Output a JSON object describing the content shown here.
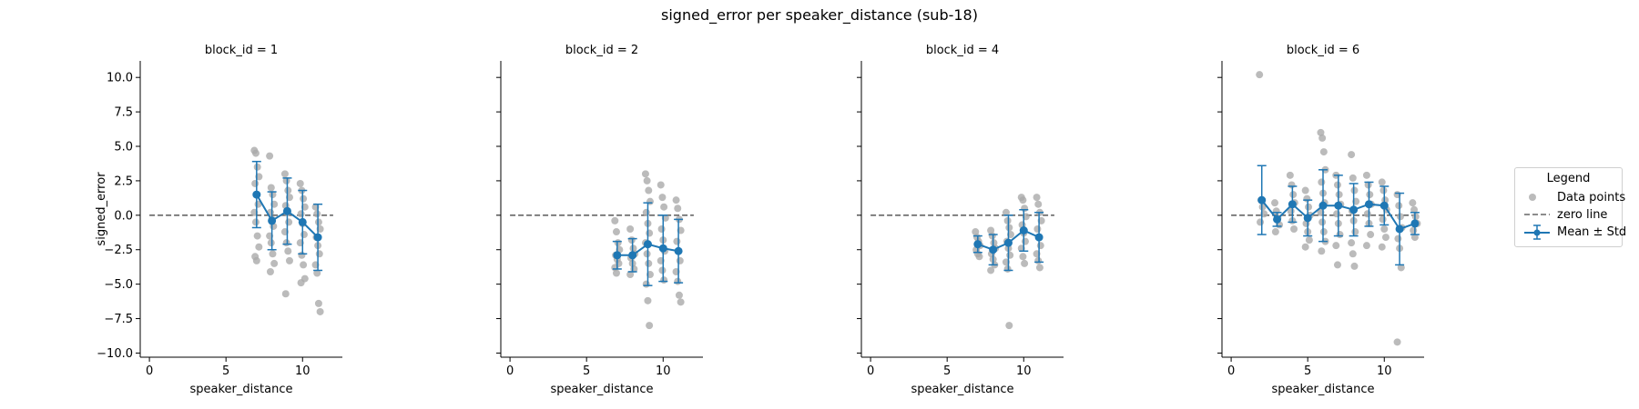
{
  "figure": {
    "title": "signed_error per speaker_distance (sub-18)"
  },
  "legend": {
    "title": "Legend",
    "items": [
      {
        "label": "Data points",
        "color": "#aaaaaa"
      },
      {
        "label": "zero line",
        "color": "#666666"
      },
      {
        "label": "Mean ± Std",
        "color": "#1f77b4"
      }
    ]
  },
  "chart_data": [
    {
      "type": "scatter",
      "title": "block_id = 1",
      "xlabel": "speaker_distance",
      "ylabel": "signed_error",
      "xlim": [
        -0.6,
        12.6
      ],
      "ylim": [
        -10.3,
        11.2
      ],
      "xticks": [
        0,
        5,
        10
      ],
      "yticks": [
        10.0,
        7.5,
        5.0,
        2.5,
        0.0,
        -2.5,
        -5.0,
        -7.5,
        -10.0
      ],
      "points": {
        "7": [
          4.7,
          4.5,
          3.5,
          2.8,
          2.3,
          1.5,
          0.8,
          0.2,
          -0.5,
          -1.5,
          -2.3,
          -3.0,
          -3.3
        ],
        "8": [
          4.3,
          2.0,
          1.5,
          0.8,
          0.2,
          -0.3,
          -0.8,
          -1.5,
          -2.0,
          -2.8,
          -3.5,
          -4.1
        ],
        "9": [
          3.0,
          2.5,
          1.8,
          1.3,
          0.7,
          0.2,
          -0.5,
          -1.2,
          -2.0,
          -2.6,
          -3.3,
          -5.7
        ],
        "10": [
          2.3,
          1.8,
          1.2,
          0.6,
          0.1,
          -0.6,
          -1.4,
          -2.0,
          -2.9,
          -3.6,
          -4.6,
          -4.9
        ],
        "11": [
          0.6,
          0.1,
          -0.5,
          -1.0,
          -1.6,
          -2.2,
          -2.8,
          -3.6,
          -4.2,
          -6.4,
          -7.0
        ]
      },
      "mean": [
        {
          "x": 7,
          "y": 1.5
        },
        {
          "x": 8,
          "y": -0.4
        },
        {
          "x": 9,
          "y": 0.3
        },
        {
          "x": 10,
          "y": -0.5
        },
        {
          "x": 11,
          "y": -1.6
        }
      ],
      "std": [
        2.4,
        2.1,
        2.4,
        2.3,
        2.4
      ]
    },
    {
      "type": "scatter",
      "title": "block_id = 2",
      "xlabel": "speaker_distance",
      "ylabel": "",
      "xlim": [
        -0.6,
        12.6
      ],
      "ylim": [
        -10.3,
        11.2
      ],
      "xticks": [
        0,
        5,
        10
      ],
      "yticks": [
        10.0,
        7.5,
        5.0,
        2.5,
        0.0,
        -2.5,
        -5.0,
        -7.5,
        -10.0
      ],
      "points": {
        "7": [
          -0.4,
          -1.2,
          -2.0,
          -2.5,
          -2.9,
          -3.2,
          -3.5,
          -3.8,
          -4.2
        ],
        "8": [
          -1.0,
          -1.8,
          -2.4,
          -2.8,
          -3.1,
          -3.5,
          -3.9,
          -4.3
        ],
        "9": [
          3.0,
          2.5,
          1.8,
          1.0,
          0.2,
          -0.6,
          -1.3,
          -2.0,
          -2.8,
          -3.5,
          -4.3,
          -5.0,
          -6.2,
          -8.0
        ],
        "10": [
          2.2,
          1.3,
          0.6,
          -0.2,
          -1.0,
          -1.8,
          -2.6,
          -3.3,
          -4.0,
          -4.7
        ],
        "11": [
          1.1,
          0.5,
          -0.3,
          -1.1,
          -1.9,
          -2.6,
          -3.3,
          -4.1,
          -4.8,
          -5.8,
          -6.3
        ]
      },
      "mean": [
        {
          "x": 7,
          "y": -2.9
        },
        {
          "x": 8,
          "y": -2.9
        },
        {
          "x": 9,
          "y": -2.1
        },
        {
          "x": 10,
          "y": -2.4
        },
        {
          "x": 11,
          "y": -2.6
        }
      ],
      "std": [
        1.0,
        1.2,
        3.0,
        2.4,
        2.3
      ]
    },
    {
      "type": "scatter",
      "title": "block_id = 4",
      "xlabel": "speaker_distance",
      "ylabel": "",
      "xlim": [
        -0.6,
        12.6
      ],
      "ylim": [
        -10.3,
        11.2
      ],
      "xticks": [
        0,
        5,
        10
      ],
      "yticks": [
        10.0,
        7.5,
        5.0,
        2.5,
        0.0,
        -2.5,
        -5.0,
        -7.5,
        -10.0
      ],
      "points": {
        "7": [
          -1.2,
          -1.6,
          -1.9,
          -2.2,
          -2.5,
          -2.8,
          -3.0
        ],
        "8": [
          -1.1,
          -1.5,
          -2.0,
          -2.4,
          -2.8,
          -3.2,
          -3.6,
          -4.0
        ],
        "9": [
          0.2,
          -0.4,
          -0.9,
          -1.4,
          -1.9,
          -2.4,
          -2.9,
          -3.4,
          -3.9,
          -8.0
        ],
        "10": [
          1.3,
          1.1,
          0.5,
          -0.1,
          -0.7,
          -1.3,
          -1.9,
          -2.4,
          -3.0,
          -3.5
        ],
        "11": [
          1.3,
          0.8,
          0.2,
          -0.4,
          -1.0,
          -1.6,
          -2.2,
          -2.8,
          -3.3,
          -3.8
        ]
      },
      "mean": [
        {
          "x": 7,
          "y": -2.1
        },
        {
          "x": 8,
          "y": -2.5
        },
        {
          "x": 9,
          "y": -2.0
        },
        {
          "x": 10,
          "y": -1.1
        },
        {
          "x": 11,
          "y": -1.6
        }
      ],
      "std": [
        0.6,
        1.1,
        2.0,
        1.5,
        1.8
      ]
    },
    {
      "type": "scatter",
      "title": "block_id = 6",
      "xlabel": "speaker_distance",
      "ylabel": "",
      "xlim": [
        -0.6,
        12.6
      ],
      "ylim": [
        -10.3,
        11.2
      ],
      "xticks": [
        0,
        5,
        10
      ],
      "yticks": [
        10.0,
        7.5,
        5.0,
        2.5,
        0.0,
        -2.5,
        -5.0,
        -7.5,
        -10.0
      ],
      "points": {
        "2": [
          10.2,
          1.1,
          0.6,
          0.1,
          -0.5
        ],
        "3": [
          0.9,
          0.3,
          -0.2,
          -0.7,
          -1.2
        ],
        "4": [
          2.9,
          2.2,
          1.5,
          0.9,
          0.3,
          -0.4,
          -1.0
        ],
        "5": [
          1.8,
          1.2,
          0.6,
          0.0,
          -0.6,
          -1.2,
          -1.8,
          -2.3
        ],
        "6": [
          6.0,
          5.6,
          4.6,
          3.3,
          2.4,
          1.6,
          0.9,
          0.2,
          -0.5,
          -1.2,
          -1.9,
          -2.6
        ],
        "7": [
          2.9,
          2.2,
          1.5,
          0.8,
          0.1,
          -0.6,
          -1.4,
          -2.2,
          -3.6
        ],
        "8": [
          4.4,
          2.7,
          1.8,
          1.0,
          0.3,
          -0.4,
          -1.2,
          -2.0,
          -2.8,
          -3.7
        ],
        "9": [
          2.9,
          2.2,
          1.5,
          0.8,
          0.1,
          -0.6,
          -1.4,
          -2.2
        ],
        "10": [
          2.4,
          1.8,
          1.1,
          0.4,
          -0.3,
          -1.0,
          -1.6,
          -2.3
        ],
        "11": [
          1.5,
          0.7,
          -0.1,
          -0.9,
          -1.7,
          -2.4,
          -3.8,
          -9.2
        ],
        "12": [
          0.9,
          0.4,
          -0.1,
          -0.6,
          -1.1,
          -1.6
        ]
      },
      "mean": [
        {
          "x": 2,
          "y": 1.1
        },
        {
          "x": 3,
          "y": -0.3
        },
        {
          "x": 4,
          "y": 0.8
        },
        {
          "x": 5,
          "y": -0.2
        },
        {
          "x": 6,
          "y": 0.7
        },
        {
          "x": 7,
          "y": 0.7
        },
        {
          "x": 8,
          "y": 0.4
        },
        {
          "x": 9,
          "y": 0.8
        },
        {
          "x": 10,
          "y": 0.7
        },
        {
          "x": 11,
          "y": -1.0
        },
        {
          "x": 12,
          "y": -0.6
        }
      ],
      "std": [
        2.5,
        0.5,
        1.3,
        1.3,
        2.6,
        2.2,
        1.9,
        1.6,
        1.4,
        2.6,
        0.8
      ]
    }
  ]
}
